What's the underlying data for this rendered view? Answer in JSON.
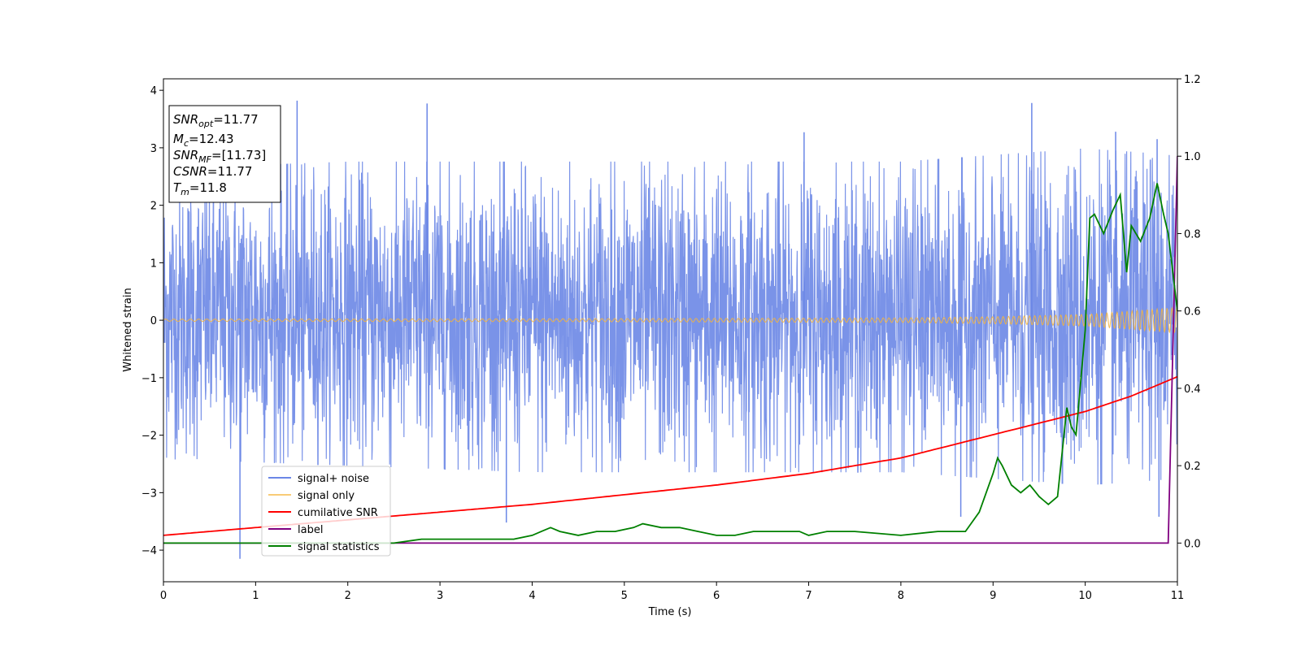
{
  "chart_data": {
    "type": "line",
    "title": "",
    "xlabel": "Time (s)",
    "ylabel": "Whitened strain",
    "xlim": [
      0,
      11
    ],
    "ylim_left": [
      -4.55,
      4.2
    ],
    "ylim_right": [
      -0.1,
      1.2
    ],
    "x_ticks": [
      "0",
      "1",
      "2",
      "3",
      "4",
      "5",
      "6",
      "7",
      "8",
      "9",
      "10",
      "11"
    ],
    "y_left_ticks": [
      "4",
      "3",
      "2",
      "1",
      "0",
      "−1",
      "−2",
      "−3",
      "−4"
    ],
    "y_right_ticks": [
      "1.2",
      "1.0",
      "0.8",
      "0.6",
      "0.4",
      "0.2",
      "0.0"
    ],
    "y_left_tick_values": [
      4,
      3,
      2,
      1,
      0,
      -1,
      -2,
      -3,
      -4
    ],
    "y_right_tick_values": [
      1.2,
      1.0,
      0.8,
      0.6,
      0.4,
      0.2,
      0.0
    ],
    "legend_position": "lower-left",
    "series": [
      {
        "name": "signal+ noise",
        "axis": "left",
        "color": "#6b87e6",
        "note_values": "noise envelope approx ±1.5 to ±2.6, spikes up to ~3.8 and down to ~-4.15",
        "peaks": [
          [
            0.83,
            -4.15
          ],
          [
            1.45,
            3.82
          ],
          [
            2.86,
            3.77
          ],
          [
            9.42,
            3.78
          ],
          [
            10.33,
            3.28
          ],
          [
            6.95,
            3.27
          ],
          [
            10.78,
            3.15
          ],
          [
            3.72,
            -3.52
          ],
          [
            8.65,
            -3.42
          ],
          [
            10.8,
            -3.42
          ]
        ],
        "envelope": {
          "x": [
            0,
            2,
            4,
            6,
            8,
            9,
            10,
            11
          ],
          "upper": [
            2.3,
            2.4,
            2.4,
            2.4,
            2.4,
            2.5,
            2.6,
            2.5
          ],
          "lower": [
            -2.1,
            -2.2,
            -2.3,
            -2.3,
            -2.3,
            -2.4,
            -2.5,
            -2.4
          ]
        }
      },
      {
        "name": "signal only",
        "axis": "left",
        "color": "#f5b53d",
        "note_values": "chirp, amplitude grows from ~0.02 at t=0 to ~0.22 at t=11",
        "amplitude": {
          "x": [
            0,
            4,
            8,
            9,
            10,
            10.5,
            11
          ],
          "y": [
            0.02,
            0.025,
            0.04,
            0.06,
            0.1,
            0.16,
            0.22
          ]
        }
      },
      {
        "name": "cumilative SNR",
        "axis": "right",
        "color": "#ff0000",
        "x": [
          0,
          1,
          2,
          3,
          4,
          5,
          6,
          7,
          8,
          8.5,
          9,
          9.5,
          10,
          10.25,
          10.5,
          10.75,
          11
        ],
        "y": [
          0.02,
          0.04,
          0.06,
          0.08,
          0.1,
          0.125,
          0.15,
          0.18,
          0.22,
          0.25,
          0.28,
          0.31,
          0.34,
          0.36,
          0.38,
          0.405,
          0.43
        ]
      },
      {
        "name": "label",
        "axis": "right",
        "color": "#800080",
        "x": [
          0,
          10.9,
          11
        ],
        "y": [
          0.0,
          0.0,
          1.0
        ]
      },
      {
        "name": "signal statistics",
        "axis": "right",
        "color": "#008000",
        "x": [
          0,
          1,
          2,
          2.5,
          2.8,
          3,
          3.2,
          3.5,
          3.8,
          4.0,
          4.1,
          4.2,
          4.3,
          4.5,
          4.7,
          4.9,
          5.1,
          5.2,
          5.4,
          5.6,
          5.8,
          6.0,
          6.2,
          6.4,
          6.6,
          6.9,
          7.0,
          7.2,
          7.5,
          8.0,
          8.4,
          8.7,
          8.85,
          9.0,
          9.05,
          9.1,
          9.2,
          9.3,
          9.4,
          9.5,
          9.55,
          9.6,
          9.7,
          9.8,
          9.85,
          9.9,
          10.0,
          10.05,
          10.1,
          10.2,
          10.3,
          10.38,
          10.45,
          10.5,
          10.6,
          10.7,
          10.78,
          10.85,
          10.9,
          11
        ],
        "y": [
          0.0,
          0.0,
          0.0,
          0.0,
          0.01,
          0.01,
          0.01,
          0.01,
          0.01,
          0.02,
          0.03,
          0.04,
          0.03,
          0.02,
          0.03,
          0.03,
          0.04,
          0.05,
          0.04,
          0.04,
          0.03,
          0.02,
          0.02,
          0.03,
          0.03,
          0.03,
          0.02,
          0.03,
          0.03,
          0.02,
          0.03,
          0.03,
          0.08,
          0.18,
          0.22,
          0.2,
          0.15,
          0.13,
          0.15,
          0.12,
          0.11,
          0.1,
          0.12,
          0.35,
          0.3,
          0.28,
          0.55,
          0.84,
          0.85,
          0.8,
          0.86,
          0.9,
          0.7,
          0.82,
          0.78,
          0.84,
          0.93,
          0.85,
          0.8,
          0.6
        ]
      }
    ]
  },
  "info_box": {
    "lines": [
      {
        "main": "SNR",
        "sub": "opt",
        "rest": "=11.77"
      },
      {
        "main": "M",
        "sub": "c",
        "rest": "=12.43"
      },
      {
        "main": "SNR",
        "sub": "MF",
        "rest": "=[11.73]"
      },
      {
        "main": "CSNR",
        "sub": "",
        "rest": "=11.77"
      },
      {
        "main": "T",
        "sub": "m",
        "rest": "=11.8"
      }
    ]
  }
}
